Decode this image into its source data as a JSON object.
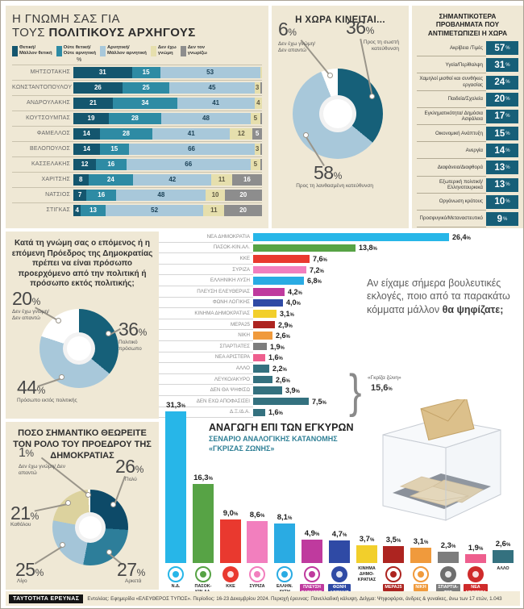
{
  "colors": {
    "panel_background": "#efe8d5",
    "problem_badge": "#175f78",
    "accent_teal": "#2e7f95",
    "grey_zone": "#34717f"
  },
  "chart_data": [
    {
      "id": "leaders_opinion",
      "type": "bar",
      "orientation": "horizontal-stacked",
      "title_line1": "Η ΓΝΩΜΗ ΣΑΣ ΓΙΑ",
      "title_line2_normal": "ΤΟΥΣ ",
      "title_line2_bold": "ΠΟΛΙΤΙΚΟΥΣ ΑΡΧΗΓΟΥΣ",
      "unit": "%",
      "legend_position": "top",
      "legend": [
        {
          "line1": "Θετική/",
          "line2": "Μάλλον θετική",
          "color": "#14566e"
        },
        {
          "line1": "Ούτε θετική/",
          "line2": "Ούτε αρνητική",
          "color": "#2e8ba4"
        },
        {
          "line1": "Αρνητική/",
          "line2": "Μάλλον αρνητική",
          "color": "#a8c8da"
        },
        {
          "line1": "Δεν έχω",
          "line2": "γνώμη",
          "color": "#e6dfad"
        },
        {
          "line1": "Δεν τον",
          "line2": "γνωρίζω",
          "color": "#8d8d8d"
        }
      ],
      "colors": [
        "#14566e",
        "#2e8ba4",
        "#a8c8da",
        "#e6dfad",
        "#8d8d8d"
      ],
      "rows": [
        {
          "name": "ΜΗΤΣΟΤΑΚΗΣ",
          "values": [
            31,
            15,
            53,
            1,
            0
          ]
        },
        {
          "name": "ΚΩΝΣΤΑΝΤΟΠΟΥΛΟΥ",
          "values": [
            26,
            25,
            45,
            3,
            1
          ]
        },
        {
          "name": "ΑΝΔΡΟΥΛΑΚΗΣ",
          "values": [
            21,
            34,
            41,
            4,
            0
          ]
        },
        {
          "name": "ΚΟΥΤΣΟΥΜΠΑΣ",
          "values": [
            19,
            28,
            48,
            5,
            1
          ]
        },
        {
          "name": "ΦΑΜΕΛΛΟΣ",
          "values": [
            14,
            28,
            41,
            12,
            5
          ]
        },
        {
          "name": "ΒΕΛΟΠΟΥΛΟΣ",
          "values": [
            14,
            15,
            66,
            3,
            1
          ]
        },
        {
          "name": "ΚΑΣΣΕΛΑΚΗΣ",
          "values": [
            12,
            16,
            66,
            5,
            1
          ]
        },
        {
          "name": "ΧΑΡΙΤΣΗΣ",
          "values": [
            8,
            24,
            42,
            11,
            16
          ]
        },
        {
          "name": "ΝΑΤΣΙΟΣ",
          "values": [
            7,
            16,
            48,
            10,
            20
          ]
        },
        {
          "name": "ΣΤΙΓΚΑΣ",
          "values": [
            4,
            13,
            52,
            11,
            20
          ]
        }
      ]
    },
    {
      "id": "country_direction",
      "type": "pie",
      "title": "Η ΧΩΡΑ ΚΙΝΕΙΤΑΙ...",
      "slices": [
        {
          "label": "Προς τη σωστή κατεύθυνση",
          "value": 36,
          "color": "#166079"
        },
        {
          "label": "Προς τη λανθασμένη κατεύθυνση",
          "value": 58,
          "color": "#a8c8da"
        },
        {
          "label": "Δεν έχω γνώμη/ Δεν απαντώ",
          "value": 6,
          "color": "#ffffff"
        }
      ]
    },
    {
      "id": "country_problems",
      "type": "table",
      "title": "ΣΗΜΑΝΤΙΚΟΤΕΡΑ ΠΡΟΒΛΗΜΑΤΑ ΠΟΥ ΑΝΤΙΜΕΤΩΠΙΖΕΙ Η ΧΩΡΑ",
      "unit": "%",
      "items": [
        {
          "label": "Ακρίβεια /Τιμές",
          "value": "57"
        },
        {
          "label": "Υγεία/Περίθαλψη",
          "value": "31"
        },
        {
          "label": "Χαμηλοί μισθοί και συνθήκες εργασίας",
          "value": "24"
        },
        {
          "label": "Παιδεία/Σχολεία",
          "value": "20"
        },
        {
          "label": "Εγκληματικότητα/ Δημόσια Ασφάλεια",
          "value": "17"
        },
        {
          "label": "Οικονομική Ανάπτυξη",
          "value": "15"
        },
        {
          "label": "Ανεργία",
          "value": "14"
        },
        {
          "label": "Διαφάνεια/Διαφθορά",
          "value": "13"
        },
        {
          "label": "Εξωτερική πολιτική/ Ελληνοτουρκικά",
          "value": "13"
        },
        {
          "label": "Οργάνωση κράτους",
          "value": "10"
        },
        {
          "label": "Προσφυγικό/Μεταναστευτικό",
          "value": "9"
        }
      ]
    },
    {
      "id": "president_origin",
      "type": "pie",
      "question": "Κατά τη γνώμη σας ο επόμενος ή η επόμενη Πρόεδρος της Δημοκρατίας πρέπει να είναι πρόσωπο προερχόμενο από την πολιτική ή πρόσωπο εκτός πολιτικής;",
      "slices": [
        {
          "label": "Πολιτικό πρόσωπο",
          "value": 36,
          "color": "#166079"
        },
        {
          "label": "Πρόσωπο εκτός πολιτικής",
          "value": 44,
          "color": "#a8c8da"
        },
        {
          "label": "Δεν έχω γνώμη/ Δεν απαντώ",
          "value": 20,
          "color": "#ffffff"
        }
      ]
    },
    {
      "id": "vote_intention",
      "type": "bar",
      "orientation": "horizontal",
      "question_prefix": "Αν είχαμε σήμερα βουλευτικές εκλογές, ποιο από τα παρακάτω κόμματα μάλλον ",
      "question_bold": "θα ψηφίζατε;",
      "xlim": [
        0,
        30
      ],
      "grey_zone": {
        "label": "«Γκρίζα ζώνη»",
        "value_label": "15,6",
        "value": 15.6
      },
      "bars": [
        {
          "label": "ΝΕΑ ΔΗΜΟΚΡΑΤΙΑ",
          "value": 26.4,
          "value_label": "26,4",
          "color": "#27b6e8"
        },
        {
          "label": "ΠΑΣΟΚ-ΚΙΝ.ΑΛ.",
          "value": 13.8,
          "value_label": "13,8",
          "color": "#57a345"
        },
        {
          "label": "ΚΚΕ",
          "value": 7.6,
          "value_label": "7,6",
          "color": "#e9392f"
        },
        {
          "label": "ΣΥΡΙΖΑ",
          "value": 7.2,
          "value_label": "7,2",
          "color": "#f27fbe"
        },
        {
          "label": "ΕΛΛΗΝΙΚΗ ΛΥΣΗ",
          "value": 6.8,
          "value_label": "6,8",
          "color": "#2aabe3"
        },
        {
          "label": "ΠΛΕΥΣΗ ΕΛΕΥΘΕΡΙΑΣ",
          "value": 4.2,
          "value_label": "4,2",
          "color": "#bf3a9e"
        },
        {
          "label": "ΦΩΝΗ ΛΟΓΙΚΗΣ",
          "value": 4.0,
          "value_label": "4,0",
          "color": "#2f4aa5"
        },
        {
          "label": "ΚΙΝΗΜΑ ΔΗΜΟΚΡΑΤΙΑΣ",
          "value": 3.1,
          "value_label": "3,1",
          "color": "#f2cf2b"
        },
        {
          "label": "ΜΕΡΑ25",
          "value": 2.9,
          "value_label": "2,9",
          "color": "#ad2420"
        },
        {
          "label": "ΝΙΚΗ",
          "value": 2.6,
          "value_label": "2,6",
          "color": "#f09a3c"
        },
        {
          "label": "ΣΠΑΡΤΙΑΤΕΣ",
          "value": 1.9,
          "value_label": "1,9",
          "color": "#7d7d7d"
        },
        {
          "label": "ΝΕΑ ΑΡΙΣΤΕΡΑ",
          "value": 1.6,
          "value_label": "1,6",
          "color": "#ee5f8e"
        },
        {
          "label": "ΑΛΛΟ",
          "value": 2.2,
          "value_label": "2,2",
          "color": "#34717f"
        },
        {
          "label": "ΛΕΥΚΟ/ΑΚΥΡΟ",
          "value": 2.6,
          "value_label": "2,6",
          "color": "#34717f"
        },
        {
          "label": "ΔΕΝ ΘΑ ΨΗΦΙΣΩ",
          "value": 3.9,
          "value_label": "3,9",
          "color": "#34717f"
        },
        {
          "label": "ΔΕΝ ΕΧΩ ΑΠΟΦΑΣΙΣΕΙ",
          "value": 7.5,
          "value_label": "7,5",
          "color": "#34717f"
        },
        {
          "label": "Δ.Ξ./Δ.Α.",
          "value": 1.6,
          "value_label": "1,6",
          "color": "#34717f"
        }
      ]
    },
    {
      "id": "projection_valid_votes",
      "type": "bar",
      "orientation": "vertical",
      "title": "ΑΝΑΓΩΓΗ ΕΠΙ ΤΩΝ ΕΓΚΥΡΩΝ",
      "subtitle": "ΣΕΝΑΡΙΟ ΑΝΑΛΟΓΙΚΗΣ ΚΑΤΑΝΟΜΗΣ «ΓΚΡΙΖΑΣ ΖΩΝΗΣ»",
      "ylim": [
        0,
        35
      ],
      "bars": [
        {
          "party": "Ν.Δ.",
          "label_lines": [
            "Ν.Δ."
          ],
          "value": 31.3,
          "value_label": "31,3",
          "color": "#27b6e8",
          "chip": null,
          "logo": true,
          "logo_style": "ring",
          "logo_color": "#27b6e8",
          "logo_icon": "nd-party-logo-icon"
        },
        {
          "party": "ΠΑΣΟΚ-ΚΙΝ.ΑΛ.",
          "label_lines": [
            "ΠΑΣΟΚ-",
            "ΚΙΝ.ΑΛ."
          ],
          "value": 16.3,
          "value_label": "16,3",
          "color": "#57a345",
          "chip": null,
          "logo": true,
          "logo_style": "ring",
          "logo_color": "#57a345",
          "logo_icon": "pasok-party-logo-icon"
        },
        {
          "party": "ΚΚΕ",
          "label_lines": [
            "ΚΚΕ"
          ],
          "value": 9.0,
          "value_label": "9,0",
          "color": "#e9392f",
          "chip": null,
          "logo": true,
          "logo_style": "filled",
          "logo_color": "#e9392f",
          "logo_icon": "kke-party-logo-icon"
        },
        {
          "party": "ΣΥΡΙΖΑ",
          "label_lines": [
            "ΣΥΡΙΖΑ"
          ],
          "value": 8.6,
          "value_label": "8,6",
          "color": "#f27fbe",
          "chip": null,
          "logo": true,
          "logo_style": "ring",
          "logo_color": "#f27fbe",
          "logo_icon": "syriza-party-logo-icon"
        },
        {
          "party": "ΕΛΛΗΝ. ΛΥΣΗ",
          "label_lines": [
            "ΕΛΛΗΝ.",
            "ΛΥΣΗ"
          ],
          "value": 8.1,
          "value_label": "8,1",
          "color": "#2aabe3",
          "chip": null,
          "logo": true,
          "logo_style": "ring",
          "logo_color": "#2aabe3",
          "logo_icon": "elliniki-lysi-party-logo-icon"
        },
        {
          "party": "ΠΛΕΥΣΗ ΕΛΕΥΘΕΡ.",
          "label_lines": [
            "ΠΛΕΥΣΗ",
            "ΕΛΕΥΘΕΡ."
          ],
          "value": 4.9,
          "value_label": "4,9",
          "color": "#bf3a9e",
          "chip": "#bf3a9e",
          "logo": true,
          "logo_style": "ring",
          "logo_color": "#bf3a9e",
          "logo_icon": "plefsi-eleftherias-party-logo-icon"
        },
        {
          "party": "ΦΩΝΗ ΛΟΓΙΚΗΣ",
          "label_lines": [
            "ΦΩΝΗ",
            "ΛΟΓΙΚΗΣ"
          ],
          "value": 4.7,
          "value_label": "4,7",
          "color": "#2f4aa5",
          "chip": "#2f4aa5",
          "logo": true,
          "logo_style": "filled",
          "logo_color": "#2f4aa5",
          "logo_icon": "foni-logikis-party-logo-icon"
        },
        {
          "party": "ΚΙΝΗΜΑ ΔΗΜΟΚΡΑΤΙΑΣ",
          "label_lines": [
            "ΚΙΝΗΜΑ",
            "ΔΗΜΟ-",
            "ΚΡΑΤΙΑΣ"
          ],
          "value": 3.7,
          "value_label": "3,7",
          "color": "#f2cf2b",
          "chip": null,
          "logo": false,
          "logo_style": null,
          "logo_color": null,
          "logo_icon": null
        },
        {
          "party": "ΜΕΡΑ25",
          "label_lines": [
            "ΜΕΡΑ25"
          ],
          "value": 3.5,
          "value_label": "3,5",
          "color": "#ad2420",
          "chip": "#ad2420",
          "logo": true,
          "logo_style": "ring",
          "logo_color": "#ad2420",
          "logo_icon": "mera25-party-logo-icon"
        },
        {
          "party": "ΝΙΚΗ",
          "label_lines": [
            "ΝΙΚΗ"
          ],
          "value": 3.1,
          "value_label": "3,1",
          "color": "#f09a3c",
          "chip": "#f09a3c",
          "logo": true,
          "logo_style": "ring",
          "logo_color": "#f09a3c",
          "logo_icon": "niki-party-logo-icon"
        },
        {
          "party": "ΣΠΑΡΤΙΑΤΕΣ",
          "label_lines": [
            "ΣΠΑΡΤΙΑ-",
            "ΤΕΣ"
          ],
          "value": 2.3,
          "value_label": "2,3",
          "color": "#7d7d7d",
          "chip": "#7d7d7d",
          "logo": true,
          "logo_style": "filled",
          "logo_color": "#6e6e6e",
          "logo_icon": "spartiates-party-logo-icon"
        },
        {
          "party": "ΝΕΑ ΑΡΙΣΤΕΡΑ",
          "label_lines": [
            "ΝΕΑ",
            "ΑΡΙΣΤΕΡΑ"
          ],
          "value": 1.9,
          "value_label": "1,9",
          "color": "#ee5f8e",
          "chip": "#cf2b2b",
          "logo": true,
          "logo_style": "filled",
          "logo_color": "#cf2b2b",
          "logo_icon": "nea-aristera-party-logo-icon"
        },
        {
          "party": "ΑΛΛΟ",
          "label_lines": [
            "ΑΛΛΟ"
          ],
          "value": 2.6,
          "value_label": "2,6",
          "color": "#34717f",
          "chip": null,
          "logo": false,
          "logo_style": null,
          "logo_color": null,
          "logo_icon": null
        }
      ]
    },
    {
      "id": "president_role_importance",
      "type": "pie",
      "title": "ΠΟΣΟ ΣΗΜΑΝΤΙΚΟ ΘΕΩΡΕΙΤΕ ΤΟΝ ΡΟΛΟ ΤΟΥ ΠΡΟΕΔΡΟΥ ΤΗΣ ΔΗΜΟΚΡΑΤΙΑΣ",
      "slices": [
        {
          "label": "Πολύ",
          "value": 26,
          "color": "#0d4a68"
        },
        {
          "label": "Αρκετά",
          "value": 27,
          "color": "#2d7e9a"
        },
        {
          "label": "Λίγο",
          "value": 25,
          "color": "#a4c5d8"
        },
        {
          "label": "Καθόλου",
          "value": 21,
          "color": "#dcd29e"
        },
        {
          "label": "Δεν έχω γνώμη/ Δεν απαντώ",
          "value": 1,
          "color": "#ffffff"
        }
      ]
    }
  ],
  "footer": {
    "badge": "ΤΑΥΤΟΤΗΤΑ ΕΡΕΥΝΑΣ",
    "text": "Εντολέας: Εφημερίδα «ΕΛΕΥΘΕΡΟΣ ΤΥΠΟΣ». Περίοδος: 16-23 Δεκεμβρίου 2024. Περιοχή έρευνας: Πανελλαδική κάλυψη. Δείγμα: Ψηφοφόροι, άνδρες & γυναίκες, άνω των 17 ετών, 1.043"
  }
}
